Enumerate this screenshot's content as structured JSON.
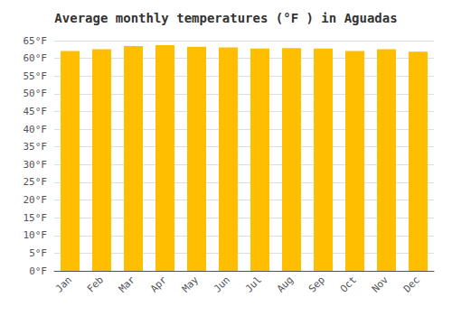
{
  "chart_data": {
    "type": "bar",
    "title": "Average monthly temperatures (°F ) in Aguadas",
    "categories": [
      "Jan",
      "Feb",
      "Mar",
      "Apr",
      "May",
      "Jun",
      "Jul",
      "Aug",
      "Sep",
      "Oct",
      "Nov",
      "Dec"
    ],
    "values": [
      62.1,
      62.6,
      63.5,
      63.7,
      63.3,
      63.1,
      62.8,
      62.9,
      62.8,
      62.1,
      62.6,
      61.9
    ],
    "color": "#FFBE00",
    "ylim": [
      0,
      65
    ],
    "yticks": [
      {
        "value": 0,
        "label": "0°F"
      },
      {
        "value": 5,
        "label": "5°F"
      },
      {
        "value": 10,
        "label": "10°F"
      },
      {
        "value": 15,
        "label": "15°F"
      },
      {
        "value": 20,
        "label": "20°F"
      },
      {
        "value": 25,
        "label": "25°F"
      },
      {
        "value": 30,
        "label": "30°F"
      },
      {
        "value": 35,
        "label": "35°F"
      },
      {
        "value": 40,
        "label": "40°F"
      },
      {
        "value": 45,
        "label": "45°F"
      },
      {
        "value": 50,
        "label": "50°F"
      },
      {
        "value": 55,
        "label": "55°F"
      },
      {
        "value": 60,
        "label": "60°F"
      },
      {
        "value": 65,
        "label": "65°F"
      }
    ],
    "grid": true
  }
}
